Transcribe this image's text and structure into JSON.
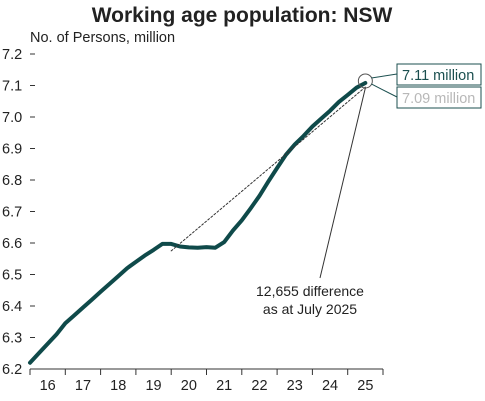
{
  "chart_data": {
    "type": "line",
    "title": "Working age population: NSW",
    "ylabel": "No. of Persons, million",
    "xlabel": "",
    "x_tick_labels": [
      "16",
      "17",
      "18",
      "19",
      "20",
      "21",
      "22",
      "23",
      "24",
      "25"
    ],
    "y_tick_labels": [
      "6.2",
      "6.3",
      "6.4",
      "6.5",
      "6.6",
      "6.7",
      "6.8",
      "6.9",
      "7.0",
      "7.1",
      "7.2"
    ],
    "ylim": [
      6.2,
      7.2
    ],
    "xlim": [
      15.5,
      25.5
    ],
    "grid": false,
    "series": [
      {
        "style": "solid",
        "color": "#0f4a4a",
        "x": [
          15.5,
          15.75,
          16.0,
          16.25,
          16.5,
          16.75,
          17.0,
          17.25,
          17.5,
          17.75,
          18.0,
          18.25,
          18.5,
          18.75,
          19.0,
          19.25,
          19.5,
          19.75,
          20.0,
          20.25,
          20.5,
          20.75,
          21.0,
          21.25,
          21.5,
          21.75,
          22.0,
          22.25,
          22.5,
          22.75,
          23.0,
          23.25,
          23.5,
          23.75,
          24.0,
          24.25,
          24.5,
          24.75,
          25.0
        ],
        "values": [
          6.22,
          6.25,
          6.28,
          6.31,
          6.345,
          6.37,
          6.395,
          6.42,
          6.445,
          6.47,
          6.495,
          6.52,
          6.54,
          6.56,
          6.578,
          6.597,
          6.597,
          6.589,
          6.586,
          6.585,
          6.587,
          6.585,
          6.603,
          6.64,
          6.672,
          6.71,
          6.75,
          6.795,
          6.838,
          6.88,
          6.913,
          6.94,
          6.97,
          6.995,
          7.02,
          7.048,
          7.07,
          7.093,
          7.108
        ]
      },
      {
        "style": "dotted",
        "color": "#333333",
        "x": [
          19.5,
          25.0
        ],
        "values": [
          6.575,
          7.095
        ]
      }
    ],
    "annotations": {
      "actual_label": "7.11 million",
      "projection_label": "7.09 million",
      "difference_line1": "12,655 difference",
      "difference_line2": "as at July 2025"
    },
    "colors": {
      "series_line": "#0f4a4a",
      "actual_box_text": "#1b4f4f",
      "projection_box_text": "#b8b8b8",
      "box_border": "#1b4f4f"
    }
  }
}
